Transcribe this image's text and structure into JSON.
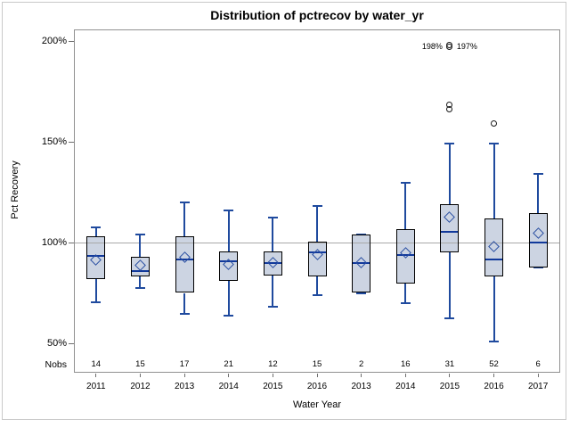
{
  "title": "Distribution of pctrecov by water_yr",
  "y_axis": {
    "label": "Pct Recovery",
    "nobs_label": "Nobs",
    "ticks": [
      {
        "label": "200%",
        "value": 200
      },
      {
        "label": "150%",
        "value": 150
      },
      {
        "label": "100%",
        "value": 100
      },
      {
        "label": "50%",
        "value": 50
      }
    ]
  },
  "x_axis": {
    "label": "Water Year"
  },
  "reference_line_value": 100,
  "colors": {
    "box_fill": "#ccd4e2",
    "box_border": "#000000",
    "whisker": "#1f4a9e",
    "median": "#11399b",
    "mean": "#2a4fa2",
    "outlier": "#1a1a1a",
    "ref_line": "#a8a8a8",
    "frame": "#919191"
  },
  "chart_data": {
    "type": "box",
    "title": "Distribution of pctrecov by water_yr",
    "xlabel": "Water Year",
    "ylabel": "Pct Recovery",
    "ylim": [
      35,
      206
    ],
    "grid": false,
    "reference_line": 100,
    "categories": [
      "2011",
      "2012",
      "2013",
      "2014",
      "2015",
      "2016",
      "2013",
      "2014",
      "2015",
      "2016",
      "2017"
    ],
    "nobs": [
      14,
      15,
      17,
      21,
      12,
      15,
      2,
      16,
      31,
      52,
      6
    ],
    "boxes": [
      {
        "year": "2011",
        "nobs": "14",
        "whisker_low": 70.5,
        "q1": 82,
        "median": 93.5,
        "mean": 91.5,
        "q3": 103,
        "whisker_high": 107.5,
        "outliers": []
      },
      {
        "year": "2012",
        "nobs": "15",
        "whisker_low": 77.5,
        "q1": 83,
        "median": 86,
        "mean": 88.5,
        "q3": 93,
        "whisker_high": 104,
        "outliers": []
      },
      {
        "year": "2013",
        "nobs": "17",
        "whisker_low": 64.5,
        "q1": 75,
        "median": 91.5,
        "mean": 92.5,
        "q3": 103,
        "whisker_high": 120,
        "outliers": []
      },
      {
        "year": "2014",
        "nobs": "21",
        "whisker_low": 63.5,
        "q1": 81,
        "median": 90.5,
        "mean": 89,
        "q3": 95.5,
        "whisker_high": 116,
        "outliers": []
      },
      {
        "year": "2015",
        "nobs": "12",
        "whisker_low": 68,
        "q1": 83.5,
        "median": 90,
        "mean": 90,
        "q3": 95.5,
        "whisker_high": 112.5,
        "outliers": []
      },
      {
        "year": "2016",
        "nobs": "15",
        "whisker_low": 74,
        "q1": 83,
        "median": 95,
        "mean": 94,
        "q3": 100.5,
        "whisker_high": 118,
        "outliers": []
      },
      {
        "year": "2013",
        "nobs": "2",
        "whisker_low": 75,
        "q1": 75,
        "median": 90,
        "mean": 90,
        "q3": 104,
        "whisker_high": 104,
        "outliers": []
      },
      {
        "year": "2014",
        "nobs": "16",
        "whisker_low": 70,
        "q1": 79.5,
        "median": 94,
        "mean": 95,
        "q3": 106.5,
        "whisker_high": 129.5,
        "outliers": []
      },
      {
        "year": "2015",
        "nobs": "31",
        "whisker_low": 62.5,
        "q1": 95,
        "median": 105.5,
        "mean": 112.5,
        "q3": 119,
        "whisker_high": 149,
        "outliers": [
          166,
          168.5
        ],
        "far_outliers": {
          "values": [
            197,
            198
          ],
          "left_label": "198%",
          "right_label": "197%"
        }
      },
      {
        "year": "2016",
        "nobs": "52",
        "whisker_low": 51,
        "q1": 83,
        "median": 91.5,
        "mean": 98,
        "q3": 112,
        "whisker_high": 149,
        "outliers": [
          159
        ]
      },
      {
        "year": "2017",
        "nobs": "6",
        "whisker_low": 87.5,
        "q1": 87.5,
        "median": 100,
        "mean": 104.5,
        "q3": 114.5,
        "whisker_high": 134,
        "outliers": []
      }
    ]
  }
}
